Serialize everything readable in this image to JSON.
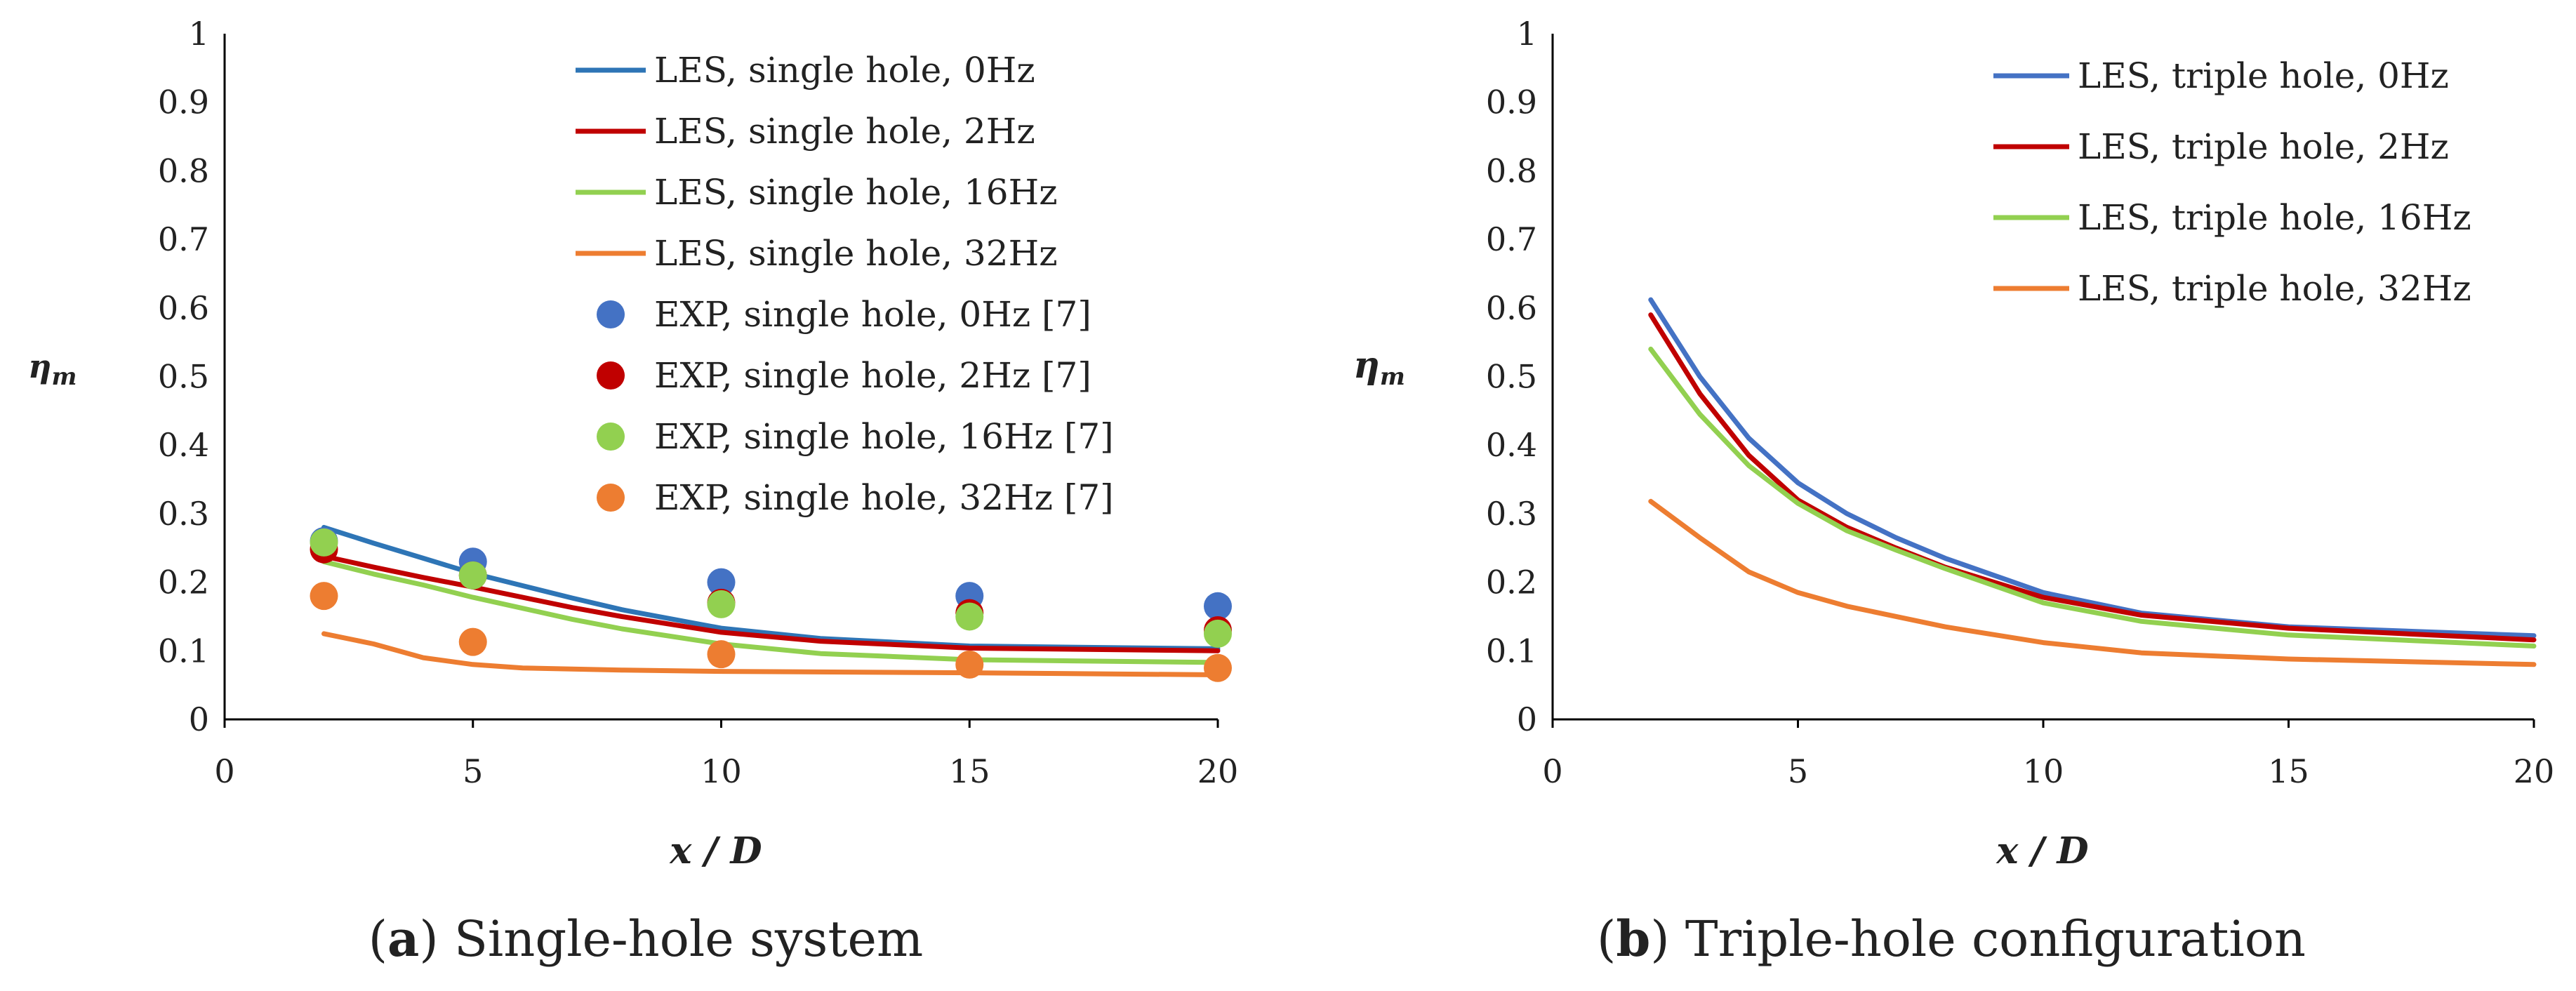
{
  "chart_data": [
    {
      "type": "line",
      "panel": "a",
      "caption_letter": "a",
      "caption_text": "Single-hole system",
      "xlabel": "x / D",
      "ylabel": "η",
      "ylabel_sub": "m",
      "xlim": [
        0,
        20
      ],
      "ylim": [
        0,
        1
      ],
      "x_ticks": [
        "0",
        "5",
        "10",
        "15",
        "20"
      ],
      "y_ticks": [
        "0",
        "0.1",
        "0.2",
        "0.3",
        "0.4",
        "0.5",
        "0.6",
        "0.7",
        "0.8",
        "0.9",
        "1"
      ],
      "legend_position": "top-right",
      "series": [
        {
          "name": "LES, single hole, 0Hz",
          "kind": "line",
          "color": "#2e75b6",
          "x": [
            2,
            3,
            4,
            5,
            6,
            7,
            8,
            10,
            12,
            15,
            20
          ],
          "y": [
            0.28,
            0.257,
            0.235,
            0.213,
            0.195,
            0.177,
            0.16,
            0.133,
            0.118,
            0.107,
            0.103
          ]
        },
        {
          "name": "LES, single hole, 2Hz",
          "kind": "line",
          "color": "#c00000",
          "x": [
            2,
            3,
            4,
            5,
            6,
            7,
            8,
            10,
            12,
            15,
            20
          ],
          "y": [
            0.238,
            0.222,
            0.207,
            0.193,
            0.178,
            0.163,
            0.15,
            0.127,
            0.114,
            0.104,
            0.1
          ]
        },
        {
          "name": "LES, single hole, 16Hz",
          "kind": "line",
          "color": "#92d050",
          "x": [
            2,
            3,
            4,
            5,
            6,
            7,
            8,
            10,
            12,
            15,
            20
          ],
          "y": [
            0.23,
            0.212,
            0.196,
            0.178,
            0.162,
            0.146,
            0.132,
            0.11,
            0.096,
            0.087,
            0.083
          ]
        },
        {
          "name": "LES, single hole, 32Hz",
          "kind": "line",
          "color": "#ed7d31",
          "x": [
            2,
            3,
            4,
            5,
            6,
            8,
            10,
            15,
            20
          ],
          "y": [
            0.125,
            0.11,
            0.09,
            0.08,
            0.075,
            0.072,
            0.07,
            0.068,
            0.065
          ]
        },
        {
          "name": "EXP, single hole, 0Hz [7]",
          "kind": "scatter",
          "color": "#4472c4",
          "x": [
            2,
            5,
            10,
            15,
            20
          ],
          "y": [
            0.26,
            0.23,
            0.2,
            0.18,
            0.165
          ]
        },
        {
          "name": "EXP, single hole, 2Hz [7]",
          "kind": "scatter",
          "color": "#c00000",
          "x": [
            2,
            5,
            10,
            15,
            20
          ],
          "y": [
            0.248,
            0.21,
            0.17,
            0.155,
            0.13
          ]
        },
        {
          "name": "EXP, single hole, 16Hz [7]",
          "kind": "scatter",
          "color": "#92d050",
          "x": [
            2,
            5,
            10,
            15,
            20
          ],
          "y": [
            0.258,
            0.21,
            0.168,
            0.15,
            0.125
          ]
        },
        {
          "name": "EXP, single hole, 32Hz [7]",
          "kind": "scatter",
          "color": "#ed7d31",
          "x": [
            2,
            5,
            10,
            15,
            20
          ],
          "y": [
            0.18,
            0.113,
            0.095,
            0.08,
            0.075
          ]
        }
      ]
    },
    {
      "type": "line",
      "panel": "b",
      "caption_letter": "b",
      "caption_text": "Triple-hole configuration",
      "xlabel": "x / D",
      "ylabel": "η",
      "ylabel_sub": "m",
      "xlim": [
        0,
        20
      ],
      "ylim": [
        0,
        1
      ],
      "x_ticks": [
        "0",
        "5",
        "10",
        "15",
        "20"
      ],
      "y_ticks": [
        "0",
        "0.1",
        "0.2",
        "0.3",
        "0.4",
        "0.5",
        "0.6",
        "0.7",
        "0.8",
        "0.9",
        "1"
      ],
      "legend_position": "top-right",
      "series": [
        {
          "name": "LES, triple hole, 0Hz",
          "kind": "line",
          "color": "#4472c4",
          "x": [
            2,
            3,
            4,
            5,
            6,
            7,
            8,
            10,
            12,
            15,
            20
          ],
          "y": [
            0.612,
            0.5,
            0.41,
            0.345,
            0.3,
            0.265,
            0.235,
            0.185,
            0.155,
            0.135,
            0.122
          ]
        },
        {
          "name": "LES, triple hole, 2Hz",
          "kind": "line",
          "color": "#c00000",
          "x": [
            2,
            3,
            4,
            5,
            6,
            7,
            8,
            10,
            12,
            15,
            20
          ],
          "y": [
            0.59,
            0.475,
            0.385,
            0.32,
            0.28,
            0.25,
            0.222,
            0.178,
            0.152,
            0.133,
            0.116
          ]
        },
        {
          "name": "LES, triple hole, 16Hz",
          "kind": "line",
          "color": "#92d050",
          "x": [
            2,
            3,
            4,
            5,
            6,
            7,
            8,
            10,
            12,
            15,
            20
          ],
          "y": [
            0.54,
            0.445,
            0.37,
            0.315,
            0.275,
            0.247,
            0.22,
            0.17,
            0.143,
            0.123,
            0.107
          ]
        },
        {
          "name": "LES, triple hole, 32Hz",
          "kind": "line",
          "color": "#ed7d31",
          "x": [
            2,
            3,
            4,
            5,
            6,
            8,
            10,
            12,
            15,
            20
          ],
          "y": [
            0.318,
            0.265,
            0.215,
            0.185,
            0.165,
            0.135,
            0.112,
            0.097,
            0.088,
            0.08
          ]
        }
      ]
    }
  ]
}
